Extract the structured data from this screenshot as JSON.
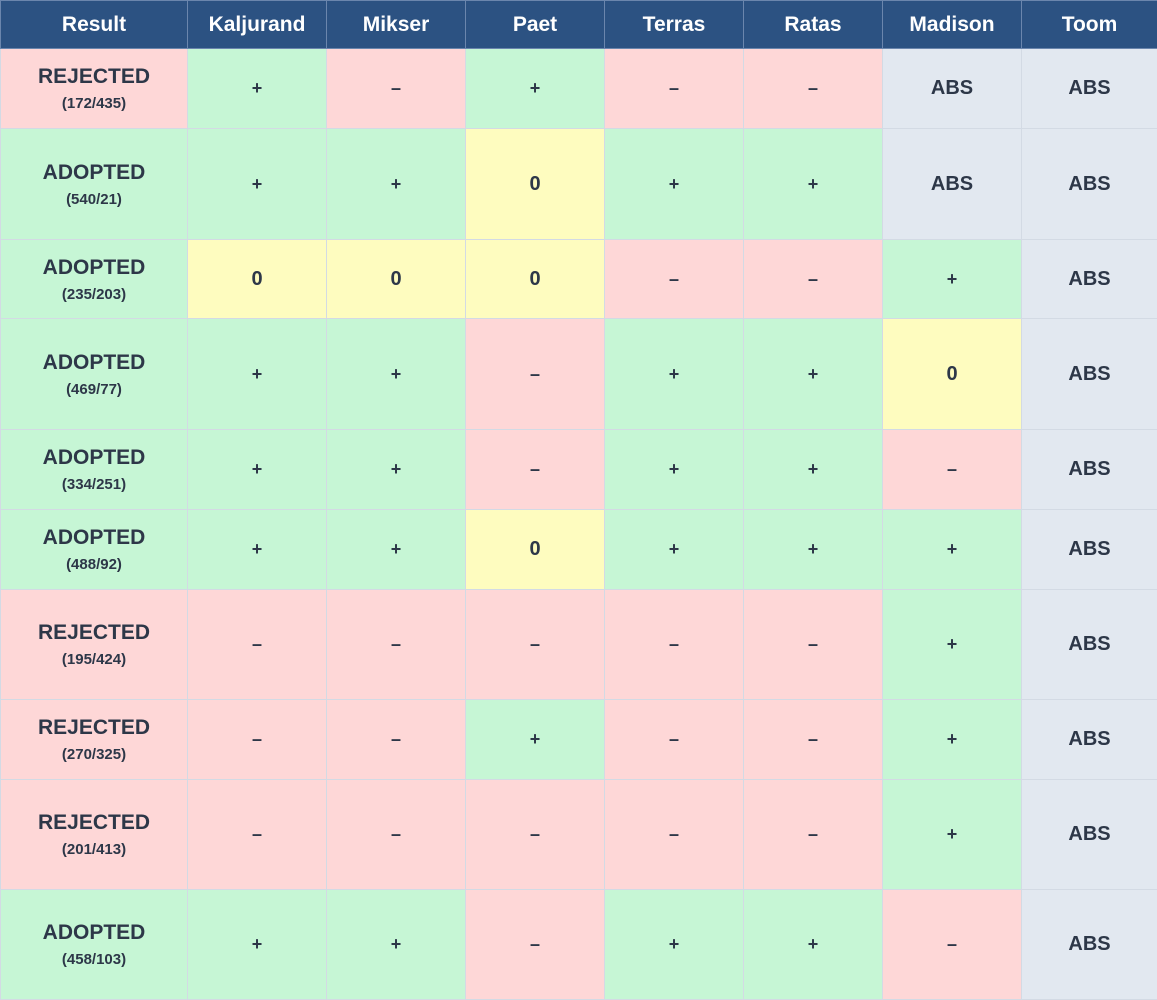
{
  "table": {
    "header": [
      "Result",
      "Kaljurand",
      "Mikser",
      "Paet",
      "Terras",
      "Ratas",
      "Madison",
      "Toom"
    ],
    "rows": [
      {
        "result": "REJECTED",
        "votes": "(172/435)",
        "cells": [
          "+",
          "–",
          "+",
          "–",
          "–",
          "ABS",
          "ABS"
        ]
      },
      {
        "result": "ADOPTED",
        "votes": "(540/21)",
        "cells": [
          "+",
          "+",
          "0",
          "+",
          "+",
          "ABS",
          "ABS"
        ]
      },
      {
        "result": "ADOPTED",
        "votes": "(235/203)",
        "cells": [
          "0",
          "0",
          "0",
          "–",
          "–",
          "+",
          "ABS"
        ]
      },
      {
        "result": "ADOPTED",
        "votes": "(469/77)",
        "cells": [
          "+",
          "+",
          "–",
          "+",
          "+",
          "0",
          "ABS"
        ]
      },
      {
        "result": "ADOPTED",
        "votes": "(334/251)",
        "cells": [
          "+",
          "+",
          "–",
          "+",
          "+",
          "–",
          "ABS"
        ]
      },
      {
        "result": "ADOPTED",
        "votes": "(488/92)",
        "cells": [
          "+",
          "+",
          "0",
          "+",
          "+",
          "+",
          "ABS"
        ]
      },
      {
        "result": "REJECTED",
        "votes": "(195/424)",
        "cells": [
          "–",
          "–",
          "–",
          "–",
          "–",
          "+",
          "ABS"
        ]
      },
      {
        "result": "REJECTED",
        "votes": "(270/325)",
        "cells": [
          "–",
          "–",
          "+",
          "–",
          "–",
          "+",
          "ABS"
        ]
      },
      {
        "result": "REJECTED",
        "votes": "(201/413)",
        "cells": [
          "–",
          "–",
          "–",
          "–",
          "–",
          "+",
          "ABS"
        ]
      },
      {
        "result": "ADOPTED",
        "votes": "(458/103)",
        "cells": [
          "+",
          "+",
          "–",
          "+",
          "+",
          "–",
          "ABS"
        ]
      }
    ]
  }
}
